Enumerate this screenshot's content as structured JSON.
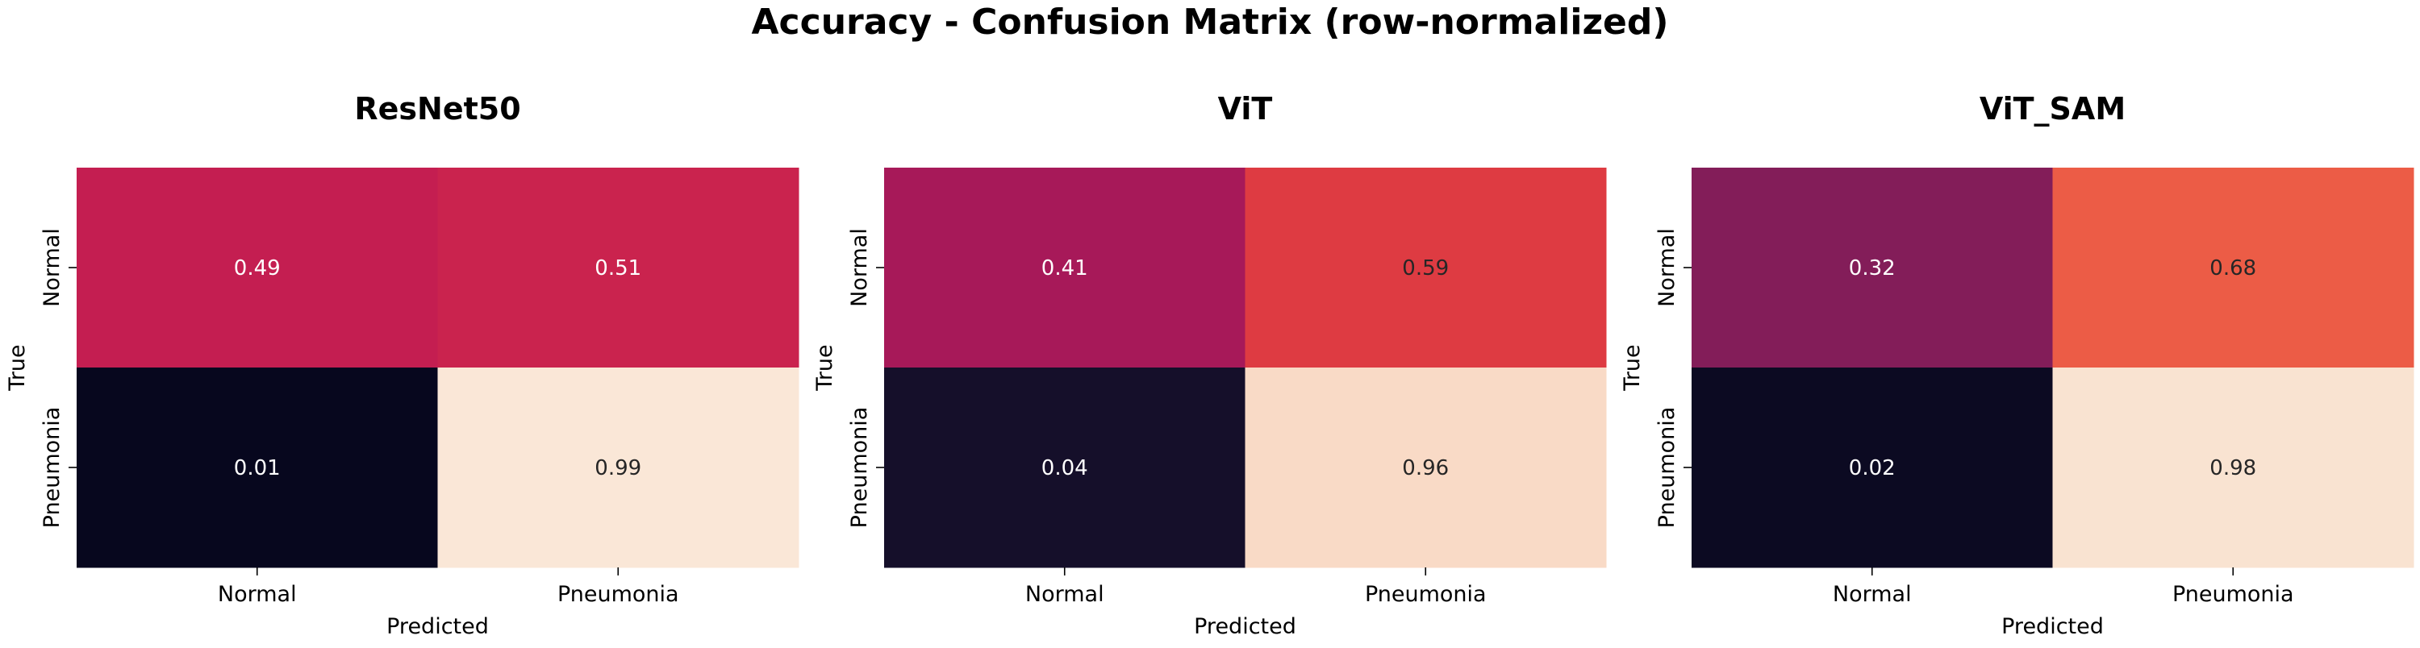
{
  "figure": {
    "suptitle": "Accuracy - Confusion Matrix (row-normalized)"
  },
  "colormap": {
    "name": "rocket",
    "stops": [
      "#03051a",
      "#2b1b3e",
      "#4c1d4b",
      "#701f57",
      "#951c5b",
      "#b91657",
      "#d52b48",
      "#e74c3c",
      "#f16d50",
      "#f59c7d",
      "#f7c5a8",
      "#faebdd"
    ]
  },
  "annotation_colors": {
    "on_dark": "#ffffff",
    "on_light": "#262626"
  },
  "chart_data": [
    {
      "type": "heatmap",
      "title": "ResNet50",
      "xlabel": "Predicted",
      "ylabel": "True",
      "x_categories": [
        "Normal",
        "Pneumonia"
      ],
      "y_categories": [
        "Normal",
        "Pneumonia"
      ],
      "values": [
        [
          0.49,
          0.51
        ],
        [
          0.01,
          0.99
        ]
      ],
      "value_labels": [
        [
          "0.49",
          "0.51"
        ],
        [
          "0.01",
          "0.99"
        ]
      ],
      "color_range": [
        0,
        1
      ],
      "colorbar": false
    },
    {
      "type": "heatmap",
      "title": "ViT",
      "xlabel": "Predicted",
      "ylabel": "True",
      "x_categories": [
        "Normal",
        "Pneumonia"
      ],
      "y_categories": [
        "Normal",
        "Pneumonia"
      ],
      "values": [
        [
          0.41,
          0.59
        ],
        [
          0.04,
          0.96
        ]
      ],
      "value_labels": [
        [
          "0.41",
          "0.59"
        ],
        [
          "0.04",
          "0.96"
        ]
      ],
      "color_range": [
        0,
        1
      ],
      "colorbar": false
    },
    {
      "type": "heatmap",
      "title": "ViT_SAM",
      "xlabel": "Predicted",
      "ylabel": "True",
      "x_categories": [
        "Normal",
        "Pneumonia"
      ],
      "y_categories": [
        "Normal",
        "Pneumonia"
      ],
      "values": [
        [
          0.32,
          0.68
        ],
        [
          0.02,
          0.98
        ]
      ],
      "value_labels": [
        [
          "0.32",
          "0.68"
        ],
        [
          "0.02",
          "0.98"
        ]
      ],
      "color_range": [
        0,
        1
      ],
      "colorbar": false
    }
  ]
}
